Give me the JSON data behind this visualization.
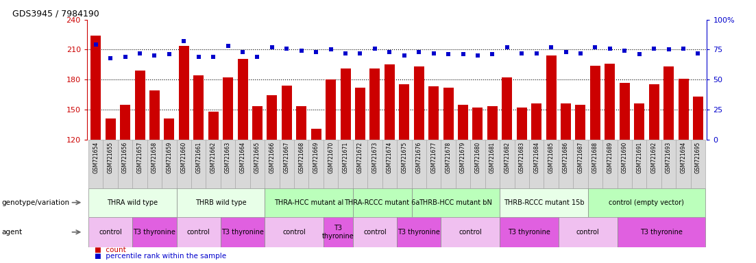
{
  "title": "GDS3945 / 7984190",
  "samples": [
    "GSM721654",
    "GSM721655",
    "GSM721656",
    "GSM721657",
    "GSM721658",
    "GSM721659",
    "GSM721660",
    "GSM721661",
    "GSM721662",
    "GSM721663",
    "GSM721664",
    "GSM721665",
    "GSM721666",
    "GSM721667",
    "GSM721668",
    "GSM721669",
    "GSM721670",
    "GSM721671",
    "GSM721672",
    "GSM721673",
    "GSM721674",
    "GSM721675",
    "GSM721676",
    "GSM721677",
    "GSM721678",
    "GSM721679",
    "GSM721680",
    "GSM721681",
    "GSM721682",
    "GSM721683",
    "GSM721684",
    "GSM721685",
    "GSM721686",
    "GSM721687",
    "GSM721688",
    "GSM721689",
    "GSM721690",
    "GSM721691",
    "GSM721692",
    "GSM721693",
    "GSM721694",
    "GSM721695"
  ],
  "bar_values": [
    224,
    141,
    155,
    189,
    169,
    141,
    214,
    184,
    148,
    182,
    201,
    153,
    164,
    174,
    153,
    131,
    180,
    191,
    172,
    191,
    195,
    175,
    193,
    173,
    172,
    155,
    152,
    153,
    182,
    152,
    156,
    204,
    156,
    155,
    194,
    196,
    177,
    156,
    175,
    193,
    181,
    163
  ],
  "dot_pct": [
    79,
    68,
    69,
    72,
    70,
    71,
    82,
    69,
    69,
    78,
    73,
    69,
    77,
    76,
    74,
    73,
    75,
    72,
    72,
    76,
    73,
    70,
    73,
    72,
    71,
    71,
    70,
    71,
    77,
    72,
    72,
    77,
    73,
    72,
    77,
    76,
    74,
    71,
    76,
    75,
    76,
    72
  ],
  "ylim_left": [
    120,
    240
  ],
  "ylim_right": [
    0,
    100
  ],
  "yticks_left": [
    120,
    150,
    180,
    210,
    240
  ],
  "yticks_right": [
    0,
    25,
    50,
    75,
    100
  ],
  "bar_color": "#cc0000",
  "dot_color": "#0000cc",
  "genotype_groups": [
    {
      "label": "THRA wild type",
      "start": 0,
      "end": 5,
      "color": "#e8ffe8"
    },
    {
      "label": "THRB wild type",
      "start": 6,
      "end": 11,
      "color": "#e8ffe8"
    },
    {
      "label": "THRA-HCC mutant al",
      "start": 12,
      "end": 17,
      "color": "#bbffbb"
    },
    {
      "label": "THRA-RCCC mutant 6a",
      "start": 18,
      "end": 21,
      "color": "#bbffbb"
    },
    {
      "label": "THRB-HCC mutant bN",
      "start": 22,
      "end": 27,
      "color": "#bbffbb"
    },
    {
      "label": "THRB-RCCC mutant 15b",
      "start": 28,
      "end": 33,
      "color": "#e8ffe8"
    },
    {
      "label": "control (empty vector)",
      "start": 34,
      "end": 41,
      "color": "#bbffbb"
    }
  ],
  "agent_groups": [
    {
      "label": "control",
      "start": 0,
      "end": 2,
      "color": "#f0c0f0"
    },
    {
      "label": "T3 thyronine",
      "start": 3,
      "end": 5,
      "color": "#e060e0"
    },
    {
      "label": "control",
      "start": 6,
      "end": 8,
      "color": "#f0c0f0"
    },
    {
      "label": "T3 thyronine",
      "start": 9,
      "end": 11,
      "color": "#e060e0"
    },
    {
      "label": "control",
      "start": 12,
      "end": 15,
      "color": "#f0c0f0"
    },
    {
      "label": "T3\nthyronine",
      "start": 16,
      "end": 17,
      "color": "#e060e0"
    },
    {
      "label": "control",
      "start": 18,
      "end": 20,
      "color": "#f0c0f0"
    },
    {
      "label": "T3 thyronine",
      "start": 21,
      "end": 23,
      "color": "#e060e0"
    },
    {
      "label": "control",
      "start": 24,
      "end": 27,
      "color": "#f0c0f0"
    },
    {
      "label": "T3 thyronine",
      "start": 28,
      "end": 31,
      "color": "#e060e0"
    },
    {
      "label": "control",
      "start": 32,
      "end": 35,
      "color": "#f0c0f0"
    },
    {
      "label": "T3 thyronine",
      "start": 36,
      "end": 41,
      "color": "#e060e0"
    }
  ],
  "legend_count_color": "#cc0000",
  "legend_dot_color": "#0000cc",
  "left_axis_color": "#cc0000",
  "right_axis_color": "#0000cc",
  "grid_lines": [
    150,
    180,
    210
  ],
  "sample_box_color": "#d8d8d8",
  "sample_box_edge": "#aaaaaa"
}
